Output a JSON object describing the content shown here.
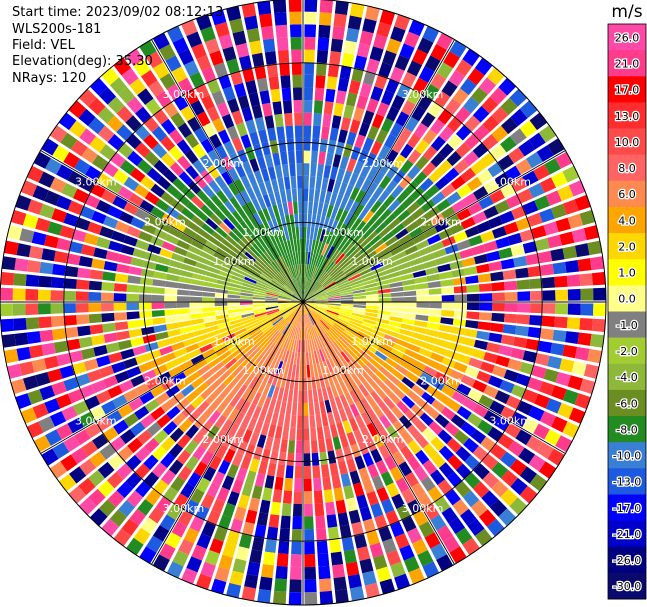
{
  "header": {
    "start_time": "Start time: 2023/09/02 08:12:13",
    "instrument": "WLS200s-181",
    "field": "Field: VEL",
    "elevation": "Elevation(deg): 35.30",
    "nrays": "NRays: 120"
  },
  "chart_data": {
    "type": "ppi",
    "field": "VEL",
    "units": "m/s",
    "elevation_deg": 35.3,
    "n_rays": 120,
    "range_rings_km": [
      1.0,
      2.0,
      3.0
    ],
    "ring_labels": [
      "1.00km",
      "2.00km",
      "3.00km"
    ],
    "max_range_km": 3.8,
    "colorbar": {
      "label": "m/s",
      "ticks": [
        "26.0",
        "21.0",
        "17.0",
        "13.0",
        "10.0",
        "8.0",
        "6.0",
        "4.0",
        "2.0",
        "1.0",
        "0.0",
        "-1.0",
        "-2.0",
        "-4.0",
        "-6.0",
        "-8.0",
        "-10.0",
        "-13.0",
        "-17.0",
        "-21.0",
        "-26.0",
        "-30.0"
      ],
      "bins": [
        {
          "min": 26,
          "max": 30,
          "color": "#ff49a6"
        },
        {
          "min": 21,
          "max": 26,
          "color": "#ff3c8c"
        },
        {
          "min": 17,
          "max": 21,
          "color": "#ff0000"
        },
        {
          "min": 13,
          "max": 17,
          "color": "#ff2d2d"
        },
        {
          "min": 10,
          "max": 13,
          "color": "#ff4a4a"
        },
        {
          "min": 8,
          "max": 10,
          "color": "#ff6464"
        },
        {
          "min": 6,
          "max": 8,
          "color": "#ff8a50"
        },
        {
          "min": 4,
          "max": 6,
          "color": "#ffa500"
        },
        {
          "min": 2,
          "max": 4,
          "color": "#ffd700"
        },
        {
          "min": 1,
          "max": 2,
          "color": "#ffff00"
        },
        {
          "min": 0,
          "max": 1,
          "color": "#ffff8a"
        },
        {
          "min": -1,
          "max": 0,
          "color": "#808080"
        },
        {
          "min": -2,
          "max": -1,
          "color": "#a2cd32"
        },
        {
          "min": -4,
          "max": -2,
          "color": "#8db83a"
        },
        {
          "min": -6,
          "max": -4,
          "color": "#6b8e23"
        },
        {
          "min": -8,
          "max": -6,
          "color": "#228b22"
        },
        {
          "min": -10,
          "max": -8,
          "color": "#3a7fd6"
        },
        {
          "min": -13,
          "max": -10,
          "color": "#1e5ae0"
        },
        {
          "min": -17,
          "max": -13,
          "color": "#0000ff"
        },
        {
          "min": -21,
          "max": -17,
          "color": "#0000cd"
        },
        {
          "min": -26,
          "max": -21,
          "color": "#000080"
        },
        {
          "min": -30,
          "max": -26,
          "color": "#0a0a6e"
        }
      ]
    }
  }
}
